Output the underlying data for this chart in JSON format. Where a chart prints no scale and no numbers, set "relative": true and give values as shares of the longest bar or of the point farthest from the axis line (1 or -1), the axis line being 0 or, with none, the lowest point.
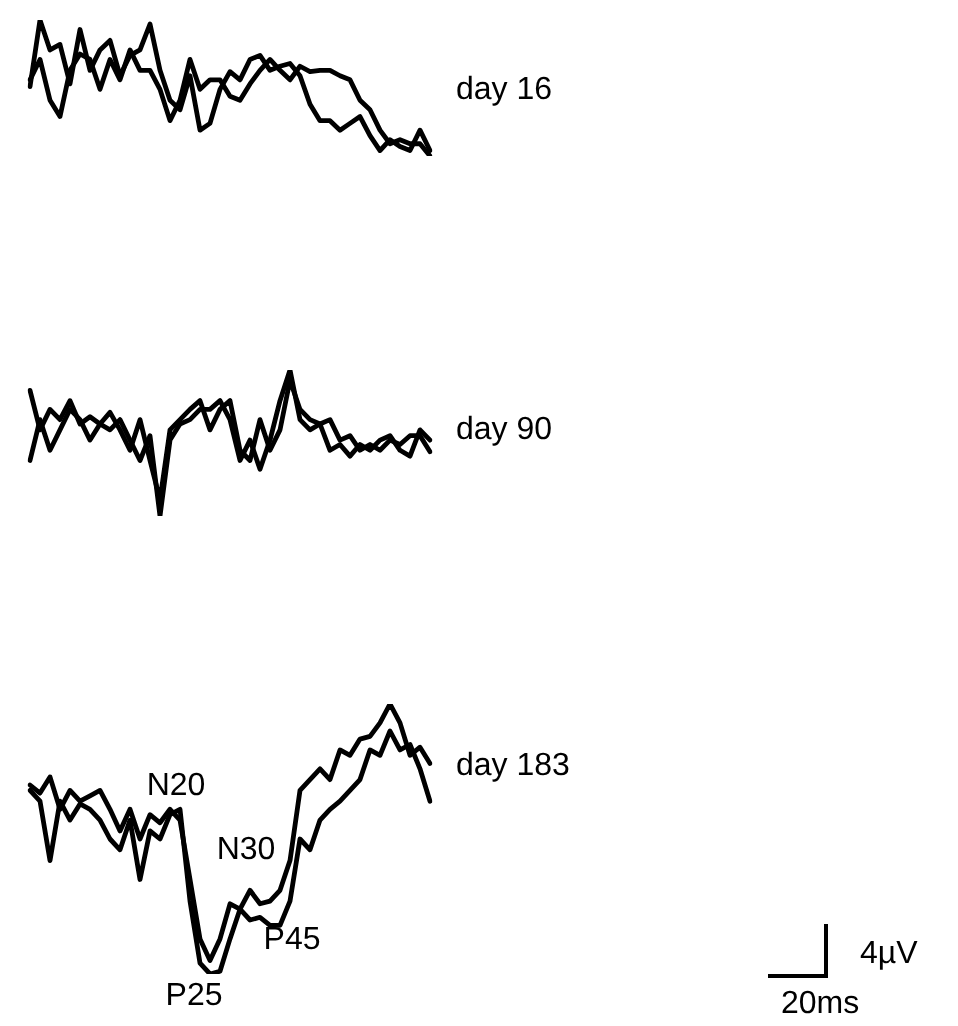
{
  "chart_data": [
    {
      "type": "line",
      "relative": true,
      "categories": [
        null,
        null,
        null,
        null,
        null,
        null,
        null,
        null,
        null,
        null,
        null,
        null,
        null,
        null,
        null,
        null,
        null,
        null,
        null,
        null,
        null,
        null,
        null,
        null,
        null,
        null,
        null,
        null,
        null,
        null,
        null,
        null,
        null,
        null,
        null,
        null,
        null,
        null,
        null,
        null,
        null
      ],
      "marker": "none",
      "legend": false,
      "annotations": [
        "day 16"
      ],
      "series": [
        {
          "color": "#000000",
          "values": [
            0.51,
            1.0,
            0.78,
            0.82,
            0.53,
            0.93,
            0.63,
            0.78,
            0.85,
            0.59,
            0.74,
            0.78,
            0.97,
            0.63,
            0.41,
            0.34,
            0.59,
            0.19,
            0.24,
            0.49,
            0.62,
            0.56,
            0.71,
            0.74,
            0.63,
            0.66,
            0.68,
            0.59,
            0.38,
            0.26,
            0.26,
            0.19,
            0.24,
            0.29,
            0.15,
            0.04,
            0.12,
            0.07,
            0.04,
            0.19,
            0.04
          ]
        },
        {
          "color": "#000000",
          "values": [
            0.56,
            0.71,
            0.41,
            0.29,
            0.63,
            0.75,
            0.71,
            0.49,
            0.71,
            0.56,
            0.78,
            0.63,
            0.63,
            0.49,
            0.26,
            0.41,
            0.71,
            0.49,
            0.56,
            0.56,
            0.44,
            0.41,
            0.53,
            0.63,
            0.71,
            0.63,
            0.56,
            0.66,
            0.62,
            0.63,
            0.63,
            0.59,
            0.56,
            0.41,
            0.34,
            0.19,
            0.09,
            0.12,
            0.09,
            0.09,
            0
          ]
        }
      ]
    },
    {
      "type": "line",
      "relative": true,
      "categories": [
        null,
        null,
        null,
        null,
        null,
        null,
        null,
        null,
        null,
        null,
        null,
        null,
        null,
        null,
        null,
        null,
        null,
        null,
        null,
        null,
        null,
        null,
        null,
        null,
        null,
        null,
        null,
        null,
        null,
        null,
        null,
        null,
        null,
        null,
        null,
        null,
        null,
        null,
        null,
        null,
        null
      ],
      "marker": "none",
      "legend": false,
      "annotations": [
        "day 90"
      ],
      "series": [
        {
          "color": "#000000",
          "values": [
            0.86,
            0.59,
            0.73,
            0.66,
            0.79,
            0.63,
            0.68,
            0.63,
            0.71,
            0.59,
            0.45,
            0.66,
            0.38,
            0.11,
            0.59,
            0.66,
            0.73,
            0.79,
            0.59,
            0.73,
            0.79,
            0.45,
            0.38,
            0.66,
            0.45,
            0.59,
            0.93,
            0.73,
            0.66,
            0.63,
            0.66,
            0.52,
            0.55,
            0.45,
            0.49,
            0.45,
            0.52,
            0.49,
            0.55,
            0.55,
            0.44
          ]
        },
        {
          "color": "#000000",
          "values": [
            0.38,
            0.66,
            0.45,
            0.59,
            0.73,
            0.66,
            0.52,
            0.63,
            0.59,
            0.66,
            0.52,
            0.38,
            0.55,
            0,
            0.52,
            0.63,
            0.66,
            0.73,
            0.73,
            0.79,
            0.66,
            0.38,
            0.52,
            0.32,
            0.52,
            0.79,
            1,
            0.66,
            0.59,
            0.63,
            0.45,
            0.49,
            0.41,
            0.49,
            0.45,
            0.52,
            0.55,
            0.45,
            0.41,
            0.59,
            0.52
          ]
        }
      ]
    },
    {
      "type": "line",
      "relative": true,
      "categories": [
        null,
        null,
        null,
        null,
        null,
        null,
        null,
        null,
        null,
        null,
        null,
        null,
        null,
        null,
        null,
        null,
        null,
        null,
        null,
        null,
        null,
        null,
        null,
        null,
        null,
        null,
        null,
        null,
        null,
        null,
        null,
        null,
        null,
        null,
        null,
        null,
        null,
        null,
        null,
        null,
        null
      ],
      "marker": "none",
      "legend": false,
      "annotations": [
        "day 183",
        "N20",
        "P25",
        "N30",
        "P45",
        "4µV",
        "20ms"
      ],
      "series": [
        {
          "color": "#000000",
          "values": [
            0.7,
            0.67,
            0.73,
            0.61,
            0.68,
            0.64,
            0.66,
            0.68,
            0.61,
            0.53,
            0.61,
            0.5,
            0.59,
            0.56,
            0.61,
            0.57,
            0.35,
            0.13,
            0.05,
            0.13,
            0.26,
            0.24,
            0.31,
            0.26,
            0.27,
            0.31,
            0.42,
            0.68,
            0.72,
            0.76,
            0.72,
            0.83,
            0.81,
            0.87,
            0.88,
            0.93,
            1,
            0.93,
            0.81,
            0.84,
            0.78
          ]
        },
        {
          "color": "#000000",
          "values": [
            0.68,
            0.64,
            0.42,
            0.64,
            0.57,
            0.63,
            0.61,
            0.57,
            0.5,
            0.46,
            0.57,
            0.35,
            0.53,
            0.5,
            0.59,
            0.61,
            0.27,
            0.04,
            0,
            0.01,
            0.13,
            0.24,
            0.2,
            0.21,
            0.18,
            0.18,
            0.27,
            0.5,
            0.46,
            0.57,
            0.61,
            0.64,
            0.68,
            0.72,
            0.83,
            0.81,
            0.9,
            0.83,
            0.85,
            0.76,
            0.64
          ]
        }
      ]
    }
  ]
}
